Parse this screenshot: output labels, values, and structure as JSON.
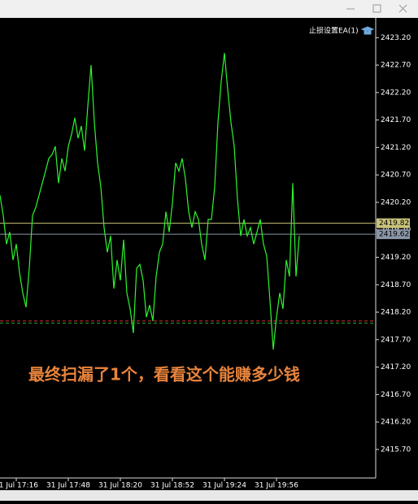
{
  "chart_data": {
    "type": "line",
    "ea_label": "止损设置EA(1)",
    "annotation": "最终扫漏了1个，看看这个能赚多少钱",
    "color": "#2df52d",
    "categories": [
      null,
      null,
      null,
      null,
      null,
      "31 Jul 17:16",
      null,
      null,
      null,
      null,
      null,
      null,
      null,
      null,
      null,
      null,
      null,
      null,
      null,
      null,
      null,
      "31 Jul 17:48",
      null,
      null,
      null,
      null,
      null,
      null,
      null,
      null,
      null,
      null,
      null,
      null,
      null,
      null,
      null,
      "31 Jul 18:20",
      null,
      null,
      null,
      null,
      null,
      null,
      null,
      null,
      null,
      null,
      null,
      null,
      null,
      null,
      null,
      "31 Jul 18:52",
      null,
      null,
      null,
      null,
      null,
      null,
      null,
      null,
      null,
      null,
      null,
      null,
      null,
      null,
      null,
      "31 Jul 19:24",
      null,
      null,
      null,
      null,
      null,
      null,
      null,
      null,
      null,
      null,
      null,
      null,
      null,
      null,
      null,
      "31 Jul 19:56",
      null,
      null,
      null,
      null,
      null,
      null,
      null
    ],
    "values": [
      2420.33,
      2419.96,
      2419.44,
      2419.66,
      2419.15,
      2419.44,
      2418.92,
      2418.55,
      2418.29,
      2419.0,
      2419.96,
      2420.11,
      2420.33,
      2420.55,
      2420.77,
      2421.0,
      2421.07,
      2421.22,
      2420.55,
      2421.0,
      2420.77,
      2421.22,
      2421.44,
      2421.74,
      2421.37,
      2421.59,
      2421.14,
      2421.96,
      2422.7,
      2421.66,
      2420.92,
      2420.48,
      2419.74,
      2419.29,
      2419.59,
      2418.63,
      2419.15,
      2418.78,
      2419.52,
      2418.55,
      2418.26,
      2417.82,
      2419.0,
      2419.07,
      2418.78,
      2418.11,
      2418.33,
      2418.04,
      2418.85,
      2419.29,
      2419.44,
      2420.03,
      2419.66,
      2420.18,
      2420.92,
      2420.77,
      2421.0,
      2420.63,
      2420.03,
      2419.74,
      2420.03,
      2419.89,
      2419.44,
      2419.15,
      2419.89,
      2419.89,
      2420.48,
      2421.66,
      2422.4,
      2422.92,
      2422.25,
      2421.66,
      2421.22,
      2420.26,
      2419.59,
      2419.89,
      2419.59,
      2419.74,
      2419.44,
      2419.66,
      2419.89,
      2419.44,
      2419.22,
      2418.41,
      2417.52,
      2418.11,
      2418.55,
      2418.26,
      2419.15,
      2418.85,
      2420.55,
      2418.85,
      2419.59
    ],
    "ylim": [
      2415.18,
      2423.56
    ],
    "yticks": [
      {
        "value": 2423.2,
        "label": "2423.20"
      },
      {
        "value": 2422.7,
        "label": "2422.70"
      },
      {
        "value": 2422.2,
        "label": "2422.20"
      },
      {
        "value": 2421.7,
        "label": "2421.70"
      },
      {
        "value": 2421.2,
        "label": "2421.20"
      },
      {
        "value": 2420.7,
        "label": "2420.70"
      },
      {
        "value": 2420.2,
        "label": "2420.20"
      },
      {
        "value": 2419.7,
        "label": "2419.70"
      },
      {
        "value": 2419.2,
        "label": "2419.20"
      },
      {
        "value": 2418.7,
        "label": "2418.70"
      },
      {
        "value": 2418.2,
        "label": "2418.20"
      },
      {
        "value": 2417.7,
        "label": "2417.70"
      },
      {
        "value": 2417.2,
        "label": "2417.20"
      },
      {
        "value": 2416.7,
        "label": "2416.70"
      },
      {
        "value": 2416.2,
        "label": "2416.20"
      },
      {
        "value": 2415.7,
        "label": "2415.70"
      }
    ],
    "price_lines": [
      {
        "value": 2419.82,
        "color": "#c8c27a"
      },
      {
        "value": 2419.62,
        "color": "#8a96a8"
      }
    ],
    "level_lines": [
      {
        "value": 2418.04,
        "color": "#e03030"
      },
      {
        "value": 2418.0,
        "color": "#2a9a2a"
      }
    ]
  }
}
